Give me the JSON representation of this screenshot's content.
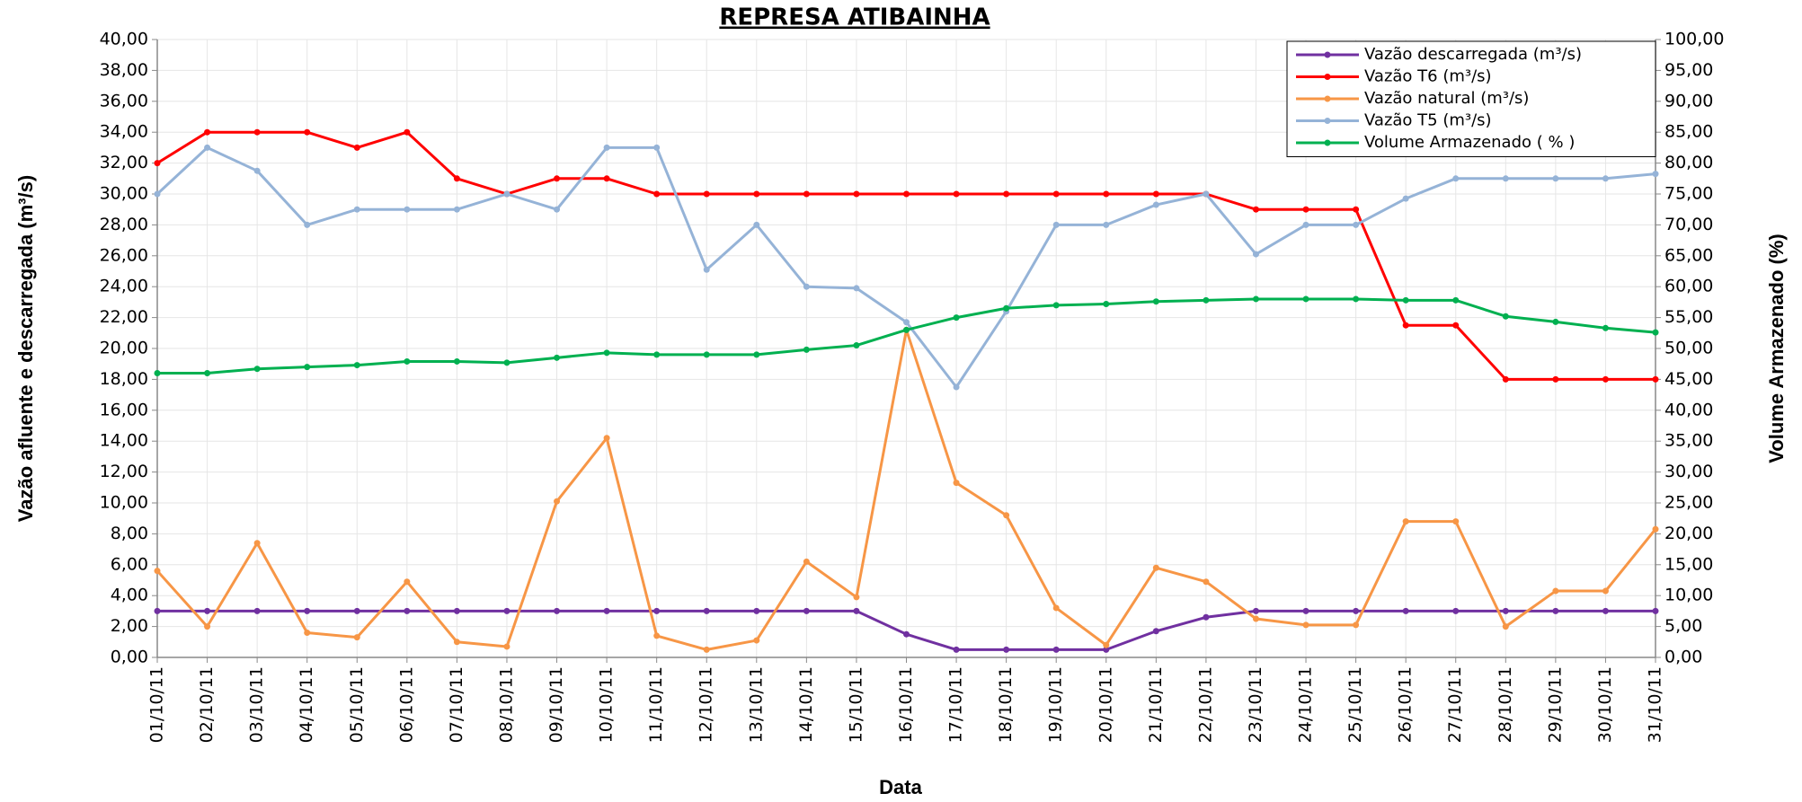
{
  "chart_data": {
    "type": "line",
    "title": "REPRESA ATIBAINHA",
    "x_label": "Data",
    "y_label": "Vazão afluente e descarregada (m³/s)",
    "y2_label": "Volume Armazenado (%)",
    "grid": true,
    "legend": "upper right",
    "categories": [
      "01/10/11",
      "02/10/11",
      "03/10/11",
      "04/10/11",
      "05/10/11",
      "06/10/11",
      "07/10/11",
      "08/10/11",
      "09/10/11",
      "10/10/11",
      "11/10/11",
      "12/10/11",
      "13/10/11",
      "14/10/11",
      "15/10/11",
      "16/10/11",
      "17/10/11",
      "18/10/11",
      "19/10/11",
      "20/10/11",
      "21/10/11",
      "22/10/11",
      "23/10/11",
      "24/10/11",
      "25/10/11",
      "26/10/11",
      "27/10/11",
      "28/10/11",
      "29/10/11",
      "30/10/11",
      "31/10/11"
    ],
    "ylim": [
      0,
      40
    ],
    "yticks": [
      {
        "value": 0,
        "label": "0,00"
      },
      {
        "value": 2,
        "label": "2,00"
      },
      {
        "value": 4,
        "label": "4,00"
      },
      {
        "value": 6,
        "label": "6,00"
      },
      {
        "value": 8,
        "label": "8,00"
      },
      {
        "value": 10,
        "label": "10,00"
      },
      {
        "value": 12,
        "label": "12,00"
      },
      {
        "value": 14,
        "label": "14,00"
      },
      {
        "value": 16,
        "label": "16,00"
      },
      {
        "value": 18,
        "label": "18,00"
      },
      {
        "value": 20,
        "label": "20,00"
      },
      {
        "value": 22,
        "label": "22,00"
      },
      {
        "value": 24,
        "label": "24,00"
      },
      {
        "value": 26,
        "label": "26,00"
      },
      {
        "value": 28,
        "label": "28,00"
      },
      {
        "value": 30,
        "label": "30,00"
      },
      {
        "value": 32,
        "label": "32,00"
      },
      {
        "value": 34,
        "label": "34,00"
      },
      {
        "value": 36,
        "label": "36,00"
      },
      {
        "value": 38,
        "label": "38,00"
      },
      {
        "value": 40,
        "label": "40,00"
      }
    ],
    "y2lim": [
      0,
      100
    ],
    "y2ticks": [
      {
        "value": 0,
        "label": "0,00"
      },
      {
        "value": 5,
        "label": "5,00"
      },
      {
        "value": 10,
        "label": "10,00"
      },
      {
        "value": 15,
        "label": "15,00"
      },
      {
        "value": 20,
        "label": "20,00"
      },
      {
        "value": 25,
        "label": "25,00"
      },
      {
        "value": 30,
        "label": "30,00"
      },
      {
        "value": 35,
        "label": "35,00"
      },
      {
        "value": 40,
        "label": "40,00"
      },
      {
        "value": 45,
        "label": "45,00"
      },
      {
        "value": 50,
        "label": "50,00"
      },
      {
        "value": 55,
        "label": "55,00"
      },
      {
        "value": 60,
        "label": "60,00"
      },
      {
        "value": 65,
        "label": "65,00"
      },
      {
        "value": 70,
        "label": "70,00"
      },
      {
        "value": 75,
        "label": "75,00"
      },
      {
        "value": 80,
        "label": "80,00"
      },
      {
        "value": 85,
        "label": "85,00"
      },
      {
        "value": 90,
        "label": "90,00"
      },
      {
        "value": 95,
        "label": "95,00"
      },
      {
        "value": 100,
        "label": "100,00"
      }
    ],
    "series": [
      {
        "name": "Vazão descarregada (m³/s)",
        "color": "#7030a0",
        "values": [
          3,
          3,
          3,
          3,
          3,
          3,
          3,
          3,
          3,
          3,
          3,
          3,
          3,
          3,
          3,
          1.5,
          0.5,
          0.5,
          0.5,
          0.5,
          1.7,
          2.6,
          3,
          3,
          3,
          3,
          3,
          3,
          3,
          3,
          3
        ]
      },
      {
        "name": "Vazão T6 (m³/s)",
        "color": "#ff0000",
        "values": [
          32,
          34,
          34,
          34,
          33,
          34,
          31,
          30,
          31,
          31,
          30,
          30,
          30,
          30,
          30,
          30,
          30,
          30,
          30,
          30,
          30,
          30,
          29,
          29,
          29,
          21.5,
          21.5,
          18,
          18,
          18,
          18
        ]
      },
      {
        "name": "Vazão natural (m³/s)",
        "color": "#f79646",
        "values": [
          5.6,
          2,
          7.4,
          1.6,
          1.3,
          4.9,
          1,
          0.7,
          10.1,
          14.2,
          1.4,
          0.5,
          1.1,
          6.2,
          3.9,
          21.2,
          11.3,
          9.2,
          3.2,
          0.8,
          5.8,
          4.9,
          2.5,
          2.1,
          2.1,
          8.8,
          8.8,
          2,
          4.3,
          4.3,
          8.3
        ]
      },
      {
        "name": "Vazão T5 (m³/s)",
        "color": "#95b3d7",
        "values": [
          30,
          33,
          31.5,
          28,
          29,
          29,
          29,
          30,
          29,
          33,
          33,
          25.1,
          28,
          24,
          23.9,
          21.7,
          17.5,
          22.4,
          28,
          28,
          29.3,
          30,
          26.1,
          28,
          28,
          29.7,
          31,
          31,
          31,
          31,
          31.3
        ]
      },
      {
        "name": "Volume Armazenado ( % )",
        "color": "#00b050",
        "axis": "y2",
        "values": [
          46,
          46,
          46.7,
          47,
          47.3,
          47.9,
          47.9,
          47.7,
          48.5,
          49.3,
          49,
          49,
          49,
          49.8,
          50.5,
          53,
          55,
          56.5,
          57,
          57.2,
          57.6,
          57.8,
          58,
          58,
          58,
          57.8,
          57.8,
          55.2,
          54.3,
          53.3,
          52.6
        ]
      }
    ]
  }
}
